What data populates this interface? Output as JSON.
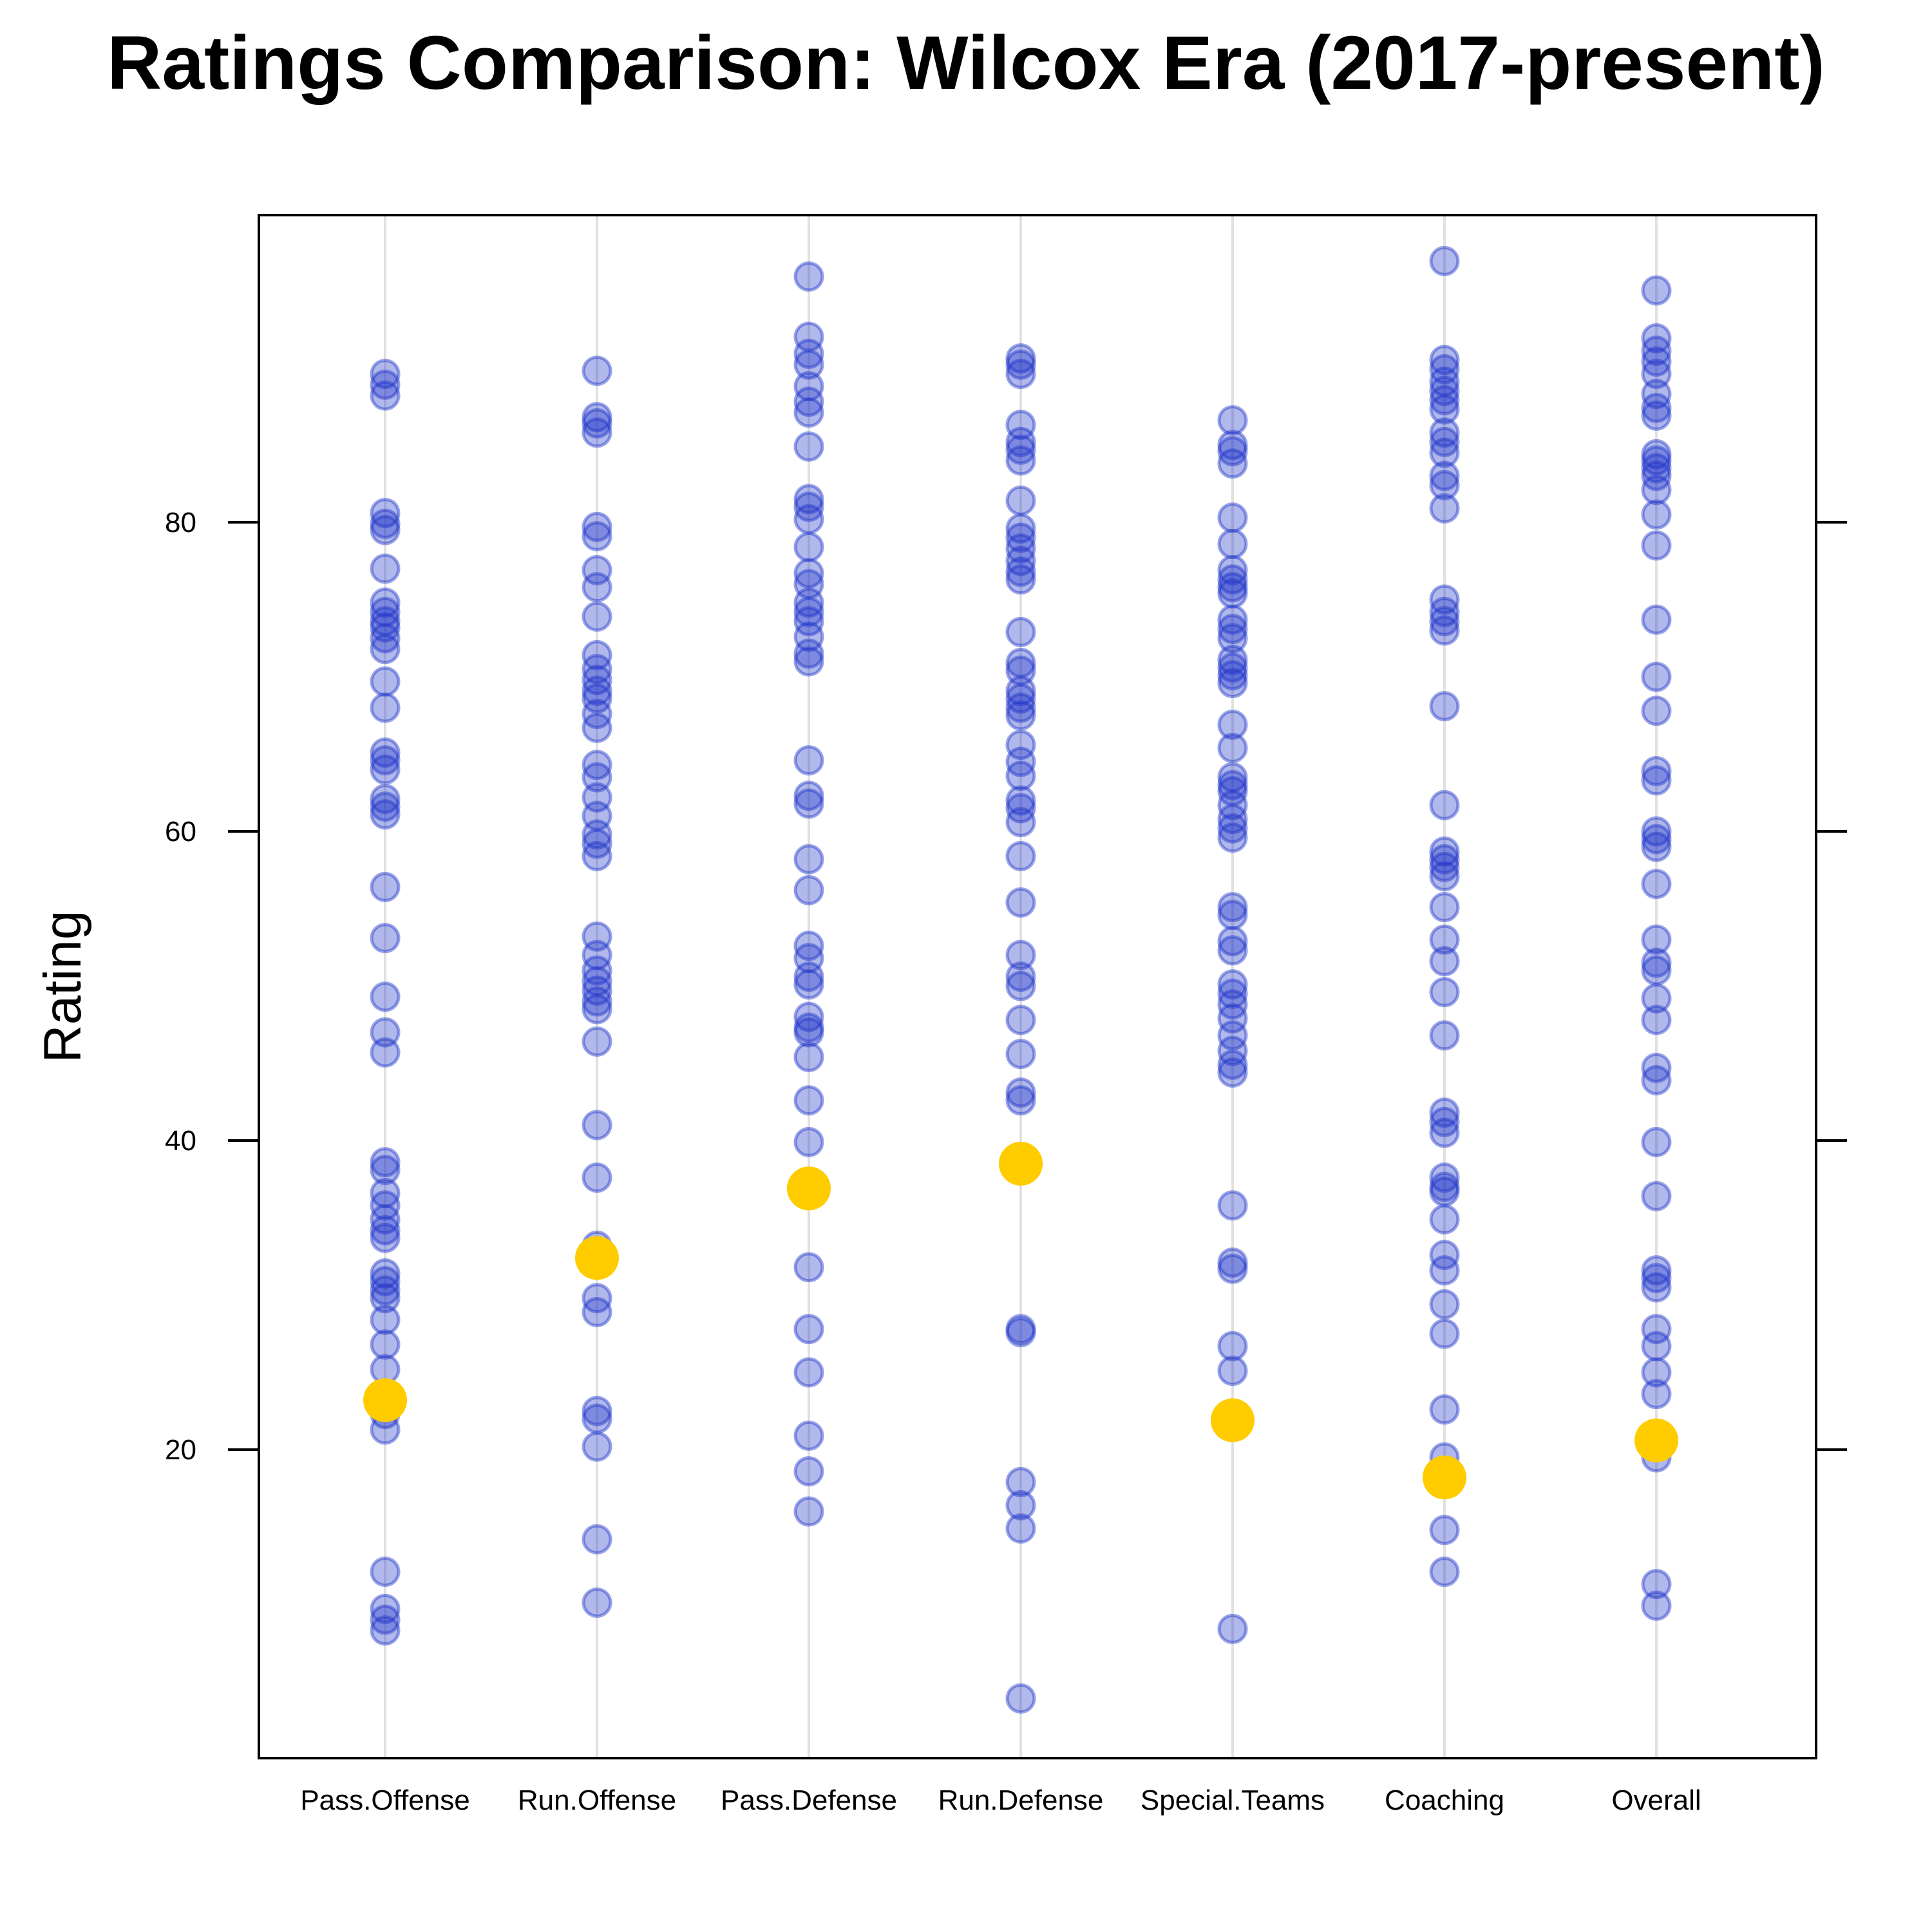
{
  "chart_data": {
    "type": "scatter",
    "title": "Ratings Comparison: Wilcox Era (2017-present)",
    "xlabel": "",
    "ylabel": "Rating",
    "ylim": [
      0,
      100
    ],
    "yticks": [
      20,
      40,
      60,
      80
    ],
    "grid": "vertical lines at each category",
    "legend": "none",
    "colors": {
      "points": "#1f35c9",
      "highlight": "#ffcc00",
      "grid": "#e1e1e1",
      "axis": "#000000"
    },
    "categories": [
      "Pass.Offense",
      "Run.Offense",
      "Pass.Defense",
      "Run.Defense",
      "Special.Teams",
      "Coaching",
      "Overall"
    ],
    "series": [
      {
        "category": "Pass.Offense",
        "values": [
          89.6,
          88.9,
          88.2,
          80.6,
          79.9,
          79.5,
          77.0,
          74.8,
          74.2,
          73.6,
          73.2,
          72.5,
          71.8,
          69.7,
          68.0,
          65.1,
          64.6,
          64.0,
          62.1,
          61.6,
          61.1,
          56.4,
          53.1,
          49.3,
          47.0,
          45.7,
          38.6,
          38.1,
          36.6,
          35.8,
          34.9,
          34.2,
          33.7,
          31.4,
          30.9,
          30.3,
          29.8,
          28.4,
          26.8,
          25.2,
          23.5,
          22.3,
          21.3,
          12.1,
          9.7,
          9.0,
          8.3
        ],
        "highlight": 23.2
      },
      {
        "category": "Run.Offense",
        "values": [
          89.8,
          86.8,
          86.4,
          85.8,
          79.7,
          79.1,
          76.9,
          75.8,
          73.9,
          71.4,
          70.5,
          69.8,
          69.1,
          68.6,
          67.6,
          66.7,
          64.3,
          63.5,
          62.2,
          61.0,
          59.8,
          59.2,
          58.4,
          53.2,
          52.0,
          51.0,
          50.3,
          49.7,
          49.0,
          48.5,
          46.4,
          41.0,
          37.6,
          33.2,
          32.7,
          29.8,
          28.9,
          22.5,
          22.0,
          20.2,
          14.2,
          10.1
        ],
        "highlight": 32.4
      },
      {
        "category": "Pass.Defense",
        "values": [
          95.9,
          92.0,
          90.9,
          90.2,
          88.8,
          87.8,
          87.1,
          84.9,
          81.5,
          81.0,
          80.2,
          78.4,
          76.7,
          76.0,
          74.8,
          74.2,
          73.6,
          72.6,
          71.5,
          71.0,
          64.6,
          62.3,
          61.8,
          58.2,
          56.2,
          52.6,
          51.8,
          50.6,
          50.1,
          48.0,
          47.3,
          47.0,
          45.4,
          42.6,
          39.9,
          31.8,
          27.8,
          25.0,
          20.9,
          18.6,
          16.0
        ],
        "highlight": 36.9
      },
      {
        "category": "Run.Defense",
        "values": [
          90.6,
          90.2,
          89.6,
          86.3,
          85.2,
          84.7,
          84.0,
          81.4,
          79.6,
          79.0,
          78.3,
          77.5,
          76.8,
          76.3,
          72.9,
          70.9,
          70.4,
          69.1,
          68.6,
          68.0,
          67.5,
          65.6,
          64.5,
          63.6,
          62.0,
          61.5,
          60.6,
          58.4,
          55.4,
          52.0,
          50.6,
          50.0,
          47.8,
          45.6,
          43.1,
          42.6,
          27.8,
          27.6,
          17.9,
          16.4,
          14.9,
          3.9
        ],
        "highlight": 38.5
      },
      {
        "category": "Special.Teams",
        "values": [
          86.6,
          85.0,
          84.6,
          83.8,
          80.3,
          78.6,
          76.9,
          76.3,
          75.8,
          75.4,
          73.7,
          73.1,
          72.5,
          71.1,
          70.6,
          70.1,
          69.6,
          66.9,
          65.4,
          63.5,
          63.0,
          62.6,
          61.7,
          60.8,
          60.2,
          59.6,
          55.1,
          54.6,
          52.9,
          52.3,
          50.1,
          49.5,
          48.8,
          47.9,
          46.8,
          45.8,
          44.9,
          44.4,
          35.8,
          32.1,
          31.7,
          26.7,
          25.1,
          8.4
        ],
        "highlight": 21.9
      },
      {
        "category": "Coaching",
        "values": [
          96.9,
          90.5,
          89.9,
          89.1,
          88.5,
          87.9,
          87.3,
          85.8,
          85.2,
          84.5,
          83.0,
          82.4,
          80.9,
          75.0,
          74.2,
          73.6,
          73.0,
          68.1,
          61.7,
          58.7,
          58.2,
          57.7,
          57.1,
          55.1,
          53.0,
          51.6,
          49.6,
          46.8,
          41.8,
          41.2,
          40.5,
          37.6,
          37.0,
          36.7,
          34.9,
          32.6,
          31.6,
          29.4,
          27.5,
          22.6,
          19.5,
          14.8,
          12.1
        ],
        "highlight": 18.2
      },
      {
        "category": "Overall",
        "values": [
          95.0,
          91.9,
          91.1,
          90.4,
          89.6,
          88.3,
          87.4,
          86.9,
          84.4,
          84.0,
          83.5,
          83.0,
          82.1,
          80.5,
          78.5,
          73.7,
          70.0,
          67.8,
          63.9,
          63.3,
          60.0,
          59.5,
          59.0,
          56.6,
          53.0,
          51.5,
          51.0,
          49.2,
          47.8,
          44.7,
          43.9,
          39.9,
          36.4,
          31.6,
          31.1,
          30.5,
          27.8,
          26.7,
          25.0,
          23.6,
          19.5,
          11.3,
          9.9
        ],
        "highlight": 20.6
      }
    ]
  }
}
